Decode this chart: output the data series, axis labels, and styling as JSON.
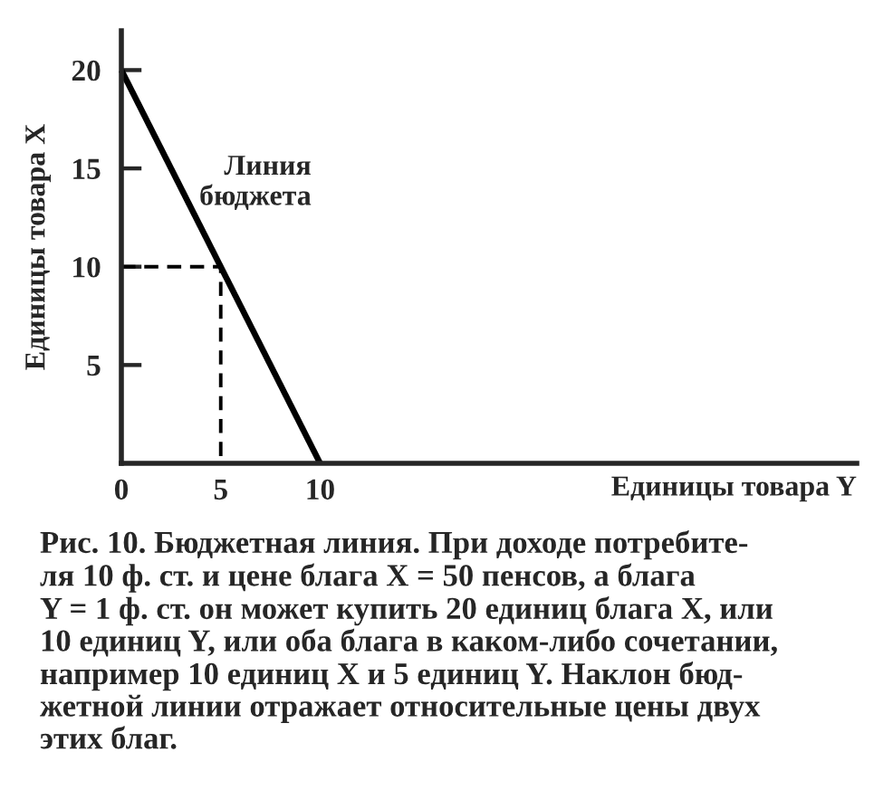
{
  "chart_data": {
    "type": "line",
    "xlabel": "Единицы товара Y",
    "ylabel": "Единицы товара X",
    "xlim": [
      0,
      37
    ],
    "ylim": [
      0,
      22
    ],
    "xticks": [
      0,
      5,
      10
    ],
    "yticks": [
      5,
      10,
      15,
      20
    ],
    "series": [
      {
        "name": "Линия\nбюджета",
        "color": "#000000",
        "x": [
          0,
          10
        ],
        "values": [
          20,
          0
        ],
        "line_style": "solid"
      },
      {
        "color": "#000000",
        "x": [
          0,
          5,
          5
        ],
        "values": [
          10,
          10,
          0
        ],
        "line_style": "dashed"
      }
    ],
    "annotations": [
      "Рис. 10. Бюджетная линия. При доходе потребите-\nля 10 ф. ст. и цене блага X = 50 пенсов, а блага\nY = 1 ф. ст. он может купить 20 единиц блага X, или\n10 единиц Y, или оба блага в каком-либо сочетании,\nнапример 10 единиц X и 5 единиц Y. Наклон бюд-\nжетной линии отражает относительные цены двух\nэтих благ."
    ]
  }
}
